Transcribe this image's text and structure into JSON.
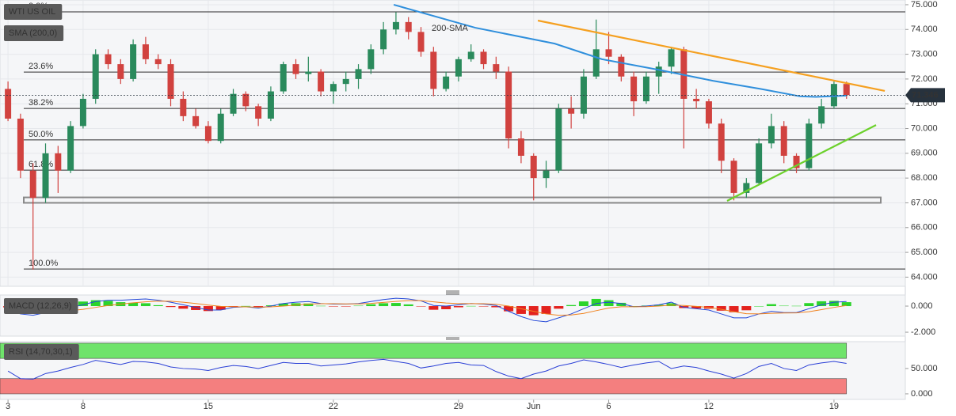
{
  "chart_data": [
    {
      "type": "candlestick",
      "title": "WTI US OIL",
      "x": [
        0,
        0.5,
        1,
        1.5,
        2,
        2.5,
        3,
        3.5,
        4,
        4.5,
        5,
        5.5,
        6,
        6.5,
        7,
        7.5,
        8,
        8.5,
        9,
        9.5,
        10,
        10.5,
        11,
        11.5,
        12,
        12.5,
        13,
        13.5,
        14,
        14.5,
        15,
        15.5,
        16,
        16.5,
        17,
        17.5,
        18,
        18.5,
        19,
        19.5,
        20,
        20.5,
        21,
        21.5,
        22,
        22.5,
        23,
        23.5,
        24,
        24.5,
        25,
        25.5,
        26,
        26.5,
        27,
        27.5,
        28,
        28.5,
        29,
        29.5,
        30,
        30.5,
        31,
        31.5,
        32,
        32.5,
        33,
        33.5
      ],
      "open": [
        71.6,
        70.4,
        68.3,
        67.2,
        69.0,
        68.3,
        70.1,
        71.2,
        73.0,
        72.6,
        72.0,
        73.4,
        72.8,
        72.6,
        71.2,
        70.5,
        70.1,
        69.5,
        70.6,
        71.4,
        70.9,
        70.4,
        71.5,
        72.6,
        72.2,
        72.3,
        71.5,
        71.8,
        72.0,
        72.4,
        73.2,
        74.0,
        74.3,
        73.9,
        73.1,
        71.6,
        72.1,
        72.8,
        73.1,
        72.6,
        72.3,
        69.6,
        68.9,
        68.0,
        68.3,
        70.8,
        70.6,
        72.1,
        73.2,
        72.9,
        72.1,
        71.1,
        72.1,
        72.5,
        73.2,
        71.2,
        71.1,
        70.2,
        68.7,
        67.4,
        67.8,
        69.4,
        70.1,
        68.9,
        68.4,
        70.2,
        70.9,
        71.8
      ],
      "high": [
        71.9,
        70.6,
        68.6,
        69.4,
        69.3,
        70.3,
        71.4,
        73.2,
        73.2,
        72.8,
        73.6,
        73.7,
        73.0,
        72.8,
        71.5,
        70.8,
        70.3,
        70.8,
        71.6,
        71.5,
        71.0,
        71.7,
        72.7,
        72.8,
        72.9,
        72.4,
        71.9,
        72.3,
        72.6,
        73.4,
        74.3,
        74.7,
        74.5,
        74.1,
        73.3,
        72.3,
        72.9,
        73.4,
        73.2,
        72.9,
        72.5,
        69.9,
        69.0,
        68.7,
        71.0,
        71.3,
        72.4,
        74.4,
        73.9,
        73.0,
        72.3,
        72.3,
        72.7,
        73.3,
        73.3,
        71.6,
        71.2,
        70.4,
        68.8,
        68.0,
        69.6,
        70.6,
        70.3,
        69.0,
        70.4,
        71.2,
        71.9,
        71.9
      ],
      "low": [
        70.3,
        68.0,
        64.3,
        67.0,
        67.4,
        68.2,
        70.0,
        71.0,
        72.4,
        71.8,
        71.9,
        72.6,
        72.4,
        70.9,
        70.3,
        70.0,
        69.4,
        69.4,
        70.5,
        70.7,
        70.1,
        70.3,
        71.4,
        72.0,
        71.9,
        71.3,
        71.0,
        71.5,
        71.6,
        72.2,
        73.0,
        73.8,
        73.6,
        72.9,
        71.3,
        71.5,
        71.9,
        72.7,
        72.4,
        72.0,
        69.2,
        68.6,
        67.1,
        67.6,
        68.2,
        70.0,
        70.4,
        72.0,
        72.6,
        71.9,
        70.5,
        71.0,
        71.4,
        72.2,
        69.2,
        70.8,
        70.0,
        68.2,
        67.1,
        67.2,
        67.7,
        69.2,
        68.6,
        68.2,
        68.3,
        70.0,
        70.8,
        71.2
      ],
      "close": [
        70.4,
        68.3,
        67.2,
        69.0,
        68.3,
        70.1,
        71.2,
        73.0,
        72.6,
        72.0,
        73.4,
        72.8,
        72.6,
        71.2,
        70.5,
        70.1,
        69.5,
        70.6,
        71.4,
        70.9,
        70.4,
        71.5,
        72.6,
        72.2,
        72.3,
        71.5,
        71.8,
        72.0,
        72.4,
        73.2,
        74.0,
        74.3,
        73.9,
        73.1,
        71.6,
        72.1,
        72.8,
        73.1,
        72.6,
        72.3,
        69.6,
        68.9,
        68.0,
        68.3,
        70.8,
        70.6,
        72.1,
        73.2,
        72.9,
        72.1,
        71.1,
        72.1,
        72.5,
        73.2,
        71.2,
        71.1,
        70.2,
        68.7,
        67.4,
        67.8,
        69.4,
        70.1,
        68.9,
        68.4,
        70.2,
        70.9,
        71.8,
        71.35
      ],
      "up_color": "#2a8a5c",
      "down_color": "#d1423f",
      "xlim": [
        -0.32,
        35.85
      ],
      "xticks": [
        {
          "value": 0,
          "label": "3"
        },
        {
          "value": 3,
          "label": "8"
        },
        {
          "value": 8,
          "label": "15"
        },
        {
          "value": 13,
          "label": "22"
        },
        {
          "value": 18,
          "label": "29"
        },
        {
          "value": 21,
          "label": "Jun"
        },
        {
          "value": 24,
          "label": "6"
        },
        {
          "value": 28,
          "label": "12"
        },
        {
          "value": 33,
          "label": "19"
        }
      ],
      "ylim": [
        63.63,
        75.19
      ],
      "yticks": [
        {
          "value": 75,
          "label": "75.000"
        },
        {
          "value": 74,
          "label": "74.000"
        },
        {
          "value": 73,
          "label": "73.000"
        },
        {
          "value": 72,
          "label": "72.000"
        },
        {
          "value": 71,
          "label": "71.000"
        },
        {
          "value": 70,
          "label": "70.000"
        },
        {
          "value": 69,
          "label": "69.000"
        },
        {
          "value": 68,
          "label": "68.000"
        },
        {
          "value": 67,
          "label": "67.000"
        },
        {
          "value": 66,
          "label": "66.000"
        },
        {
          "value": 65,
          "label": "65.000"
        },
        {
          "value": 64,
          "label": "64.000"
        }
      ],
      "grid": true,
      "sma": {
        "name": "SMA (200,0)",
        "label": "200-SMA",
        "color": "#2f8fdc",
        "x": [
          15.41,
          18.67,
          21.84,
          23.73,
          25.95,
          28.16,
          30.06,
          31.65,
          32.28,
          33.5
        ],
        "values": [
          75.0,
          74.07,
          73.43,
          72.8,
          72.38,
          71.93,
          71.6,
          71.3,
          71.28,
          71.33
        ]
      },
      "fib_levels": [
        {
          "label": "0.0%",
          "value": 74.71
        },
        {
          "label": "23.6%",
          "value": 72.28
        },
        {
          "label": "38.2%",
          "value": 70.81
        },
        {
          "label": "50.0%",
          "value": 69.54
        },
        {
          "label": "61.8%",
          "value": 68.32
        },
        {
          "label": "100.0%",
          "value": 64.33
        }
      ],
      "support_zone": {
        "x": [
          0.63,
          34.87
        ],
        "y": [
          67.0,
          67.22
        ]
      },
      "trendlines": [
        {
          "color": "#f5a020",
          "x": [
            21.17,
            35.03
          ],
          "y": [
            74.36,
            71.52
          ]
        },
        {
          "color": "#6cd12c",
          "x": [
            28.73,
            34.68
          ],
          "y": [
            67.08,
            70.14
          ]
        }
      ],
      "last_price": 71.346
    },
    {
      "type": "macd",
      "title": "MACD (12,26,9)",
      "x": [
        0,
        0.5,
        1,
        1.5,
        2,
        2.5,
        3,
        3.5,
        4,
        4.5,
        5,
        5.5,
        6,
        6.5,
        7,
        7.5,
        8,
        8.5,
        9,
        9.5,
        10,
        10.5,
        11,
        11.5,
        12,
        12.5,
        13,
        13.5,
        14,
        14.5,
        15,
        15.5,
        16,
        16.5,
        17,
        17.5,
        18,
        18.5,
        19,
        19.5,
        20,
        20.5,
        21,
        21.5,
        22,
        22.5,
        23,
        23.5,
        24,
        24.5,
        25,
        25.5,
        26,
        26.5,
        27,
        27.5,
        28,
        28.5,
        29,
        29.5,
        30,
        30.5,
        31,
        31.5,
        32,
        32.5,
        33,
        33.5
      ],
      "xlim": [
        -0.32,
        35.85
      ],
      "ylim": [
        -2.3,
        0.85
      ],
      "yticks": [
        {
          "value": 0,
          "label": "0.000"
        },
        {
          "value": -2,
          "label": "-2.000"
        }
      ],
      "histogram": {
        "pos_color": "#2bd42b",
        "neg_color": "#e3221e",
        "values": [
          -0.1,
          -0.3,
          -0.3,
          -0.05,
          0.12,
          0.25,
          0.35,
          0.45,
          0.4,
          0.3,
          0.25,
          0.22,
          0.07,
          -0.07,
          -0.2,
          -0.3,
          -0.38,
          -0.28,
          -0.05,
          0.01,
          -0.07,
          0.06,
          0.2,
          0.22,
          0.2,
          0.02,
          -0.03,
          -0.02,
          0.03,
          0.14,
          0.22,
          0.24,
          0.13,
          -0.02,
          -0.28,
          -0.24,
          -0.09,
          0.01,
          -0.03,
          -0.09,
          -0.4,
          -0.6,
          -0.7,
          -0.6,
          -0.2,
          0.08,
          0.36,
          0.55,
          0.45,
          0.25,
          0.0,
          0.04,
          0.1,
          0.22,
          -0.15,
          -0.18,
          -0.2,
          -0.35,
          -0.47,
          -0.32,
          0.0,
          0.15,
          0.03,
          0.02,
          0.23,
          0.37,
          0.4,
          0.3
        ]
      },
      "series": [
        {
          "color": "#2448d8",
          "values": [
            -0.3,
            -0.6,
            -0.7,
            -0.5,
            -0.3,
            -0.1,
            0.1,
            0.35,
            0.45,
            0.45,
            0.5,
            0.55,
            0.45,
            0.3,
            0.1,
            -0.1,
            -0.3,
            -0.3,
            -0.1,
            -0.05,
            -0.15,
            0.0,
            0.2,
            0.3,
            0.35,
            0.2,
            0.15,
            0.15,
            0.2,
            0.35,
            0.5,
            0.6,
            0.55,
            0.4,
            0.05,
            0.0,
            0.1,
            0.2,
            0.15,
            0.05,
            -0.4,
            -0.8,
            -1.1,
            -1.2,
            -0.9,
            -0.6,
            -0.2,
            0.2,
            0.3,
            0.2,
            -0.05,
            0.0,
            0.1,
            0.3,
            -0.1,
            -0.2,
            -0.3,
            -0.6,
            -0.9,
            -0.9,
            -0.6,
            -0.4,
            -0.5,
            -0.5,
            -0.2,
            0.1,
            0.3,
            0.35
          ]
        },
        {
          "color": "#f0821e",
          "values": [
            -0.2,
            -0.3,
            -0.4,
            -0.45,
            -0.42,
            -0.35,
            -0.25,
            -0.1,
            0.05,
            0.15,
            0.25,
            0.33,
            0.38,
            0.37,
            0.3,
            0.2,
            0.08,
            -0.02,
            -0.05,
            -0.06,
            -0.08,
            -0.06,
            0.0,
            0.08,
            0.15,
            0.18,
            0.18,
            0.17,
            0.17,
            0.21,
            0.28,
            0.36,
            0.42,
            0.42,
            0.33,
            0.24,
            0.19,
            0.19,
            0.18,
            0.14,
            0.0,
            -0.2,
            -0.4,
            -0.6,
            -0.7,
            -0.68,
            -0.56,
            -0.35,
            -0.15,
            -0.05,
            -0.05,
            -0.04,
            0.0,
            0.08,
            0.05,
            -0.02,
            -0.1,
            -0.25,
            -0.43,
            -0.58,
            -0.6,
            -0.55,
            -0.53,
            -0.52,
            -0.43,
            -0.27,
            -0.1,
            0.05
          ]
        }
      ]
    },
    {
      "type": "rsi",
      "title": "RSI (14,70,30,1)",
      "x": [
        0,
        0.5,
        1,
        1.5,
        2,
        2.5,
        3,
        3.5,
        4,
        4.5,
        5,
        5.5,
        6,
        6.5,
        7,
        7.5,
        8,
        8.5,
        9,
        9.5,
        10,
        10.5,
        11,
        11.5,
        12,
        12.5,
        13,
        13.5,
        14,
        14.5,
        15,
        15.5,
        16,
        16.5,
        17,
        17.5,
        18,
        18.5,
        19,
        19.5,
        20,
        20.5,
        21,
        21.5,
        22,
        22.5,
        23,
        23.5,
        24,
        24.5,
        25,
        25.5,
        26,
        26.5,
        27,
        27.5,
        28,
        28.5,
        29,
        29.5,
        30,
        30.5,
        31,
        31.5,
        32,
        32.5,
        33,
        33.5
      ],
      "xlim": [
        -0.32,
        35.85
      ],
      "ylim": [
        -11,
        103
      ],
      "yticks": [
        {
          "value": 50,
          "label": "50.000"
        },
        {
          "value": 0,
          "label": "0.000"
        }
      ],
      "bands": [
        {
          "range": [
            70,
            100
          ],
          "color": "#6fe36b"
        },
        {
          "range": [
            0,
            30
          ],
          "color": "#f47f7f"
        }
      ],
      "series": [
        {
          "color": "#2a3fd6",
          "values": [
            45,
            30,
            29,
            40,
            45,
            52,
            58,
            66,
            62,
            58,
            64,
            63,
            60,
            53,
            50,
            49,
            46,
            52,
            56,
            54,
            50,
            56,
            62,
            60,
            60,
            55,
            57,
            59,
            63,
            66,
            68,
            64,
            60,
            51,
            55,
            60,
            62,
            57,
            56,
            44,
            35,
            30,
            39,
            45,
            55,
            60,
            67,
            63,
            58,
            52,
            57,
            61,
            64,
            50,
            55,
            52,
            45,
            39,
            31,
            40,
            54,
            60,
            50,
            46,
            57,
            61,
            64,
            60
          ]
        }
      ]
    }
  ]
}
